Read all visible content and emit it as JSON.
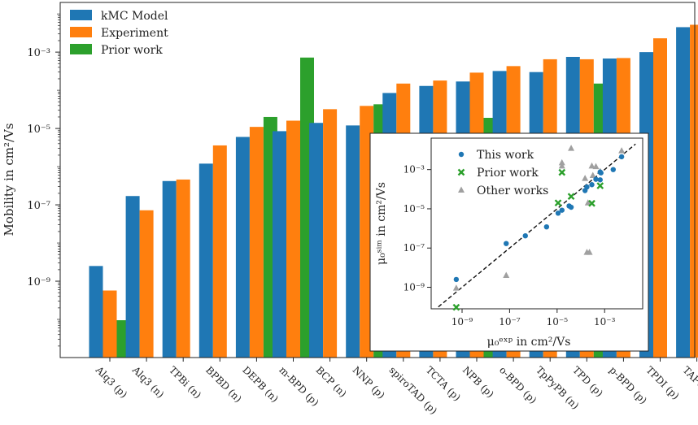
{
  "chart_data": {
    "type": "bar",
    "scale": "log",
    "ylabel": "Mobility in cm²/Vs",
    "xlabel": "",
    "ylim": [
      1e-11,
      0.02
    ],
    "y_tick_labels": [
      "10⁻³",
      "10⁻⁵",
      "10⁻⁷",
      "10⁻⁹"
    ],
    "y_tick_values": [
      0.001,
      1e-05,
      1e-07,
      1e-09
    ],
    "legend_position": "top-left",
    "colors": {
      "kmc": "#1f77b4",
      "exp": "#ff7f0e",
      "prior": "#2ca02c"
    },
    "categories": [
      "Alq3 (p)",
      "Alq3 (n)",
      "TPBi (n)",
      "BPBD (n)",
      "DEPB (n)",
      "m-BPD (p)",
      "BCP (n)",
      "NNP (p)",
      "spiroTAD (p)",
      "TCTA (p)",
      "NPB (p)",
      "o-BPD (p)",
      "TpPyPB (n)",
      "TPD (p)",
      "p-BPD (p)",
      "TPDI (p)",
      "TAPC (p)"
    ],
    "series": [
      {
        "name": "kMC Model",
        "color": "#1f77b4",
        "values": [
          2.5e-09,
          1.7e-07,
          4.2e-07,
          1.2e-06,
          6e-06,
          8.5e-06,
          1.4e-05,
          1.2e-05,
          8.5e-05,
          0.00013,
          0.00017,
          0.00032,
          0.0003,
          0.00075,
          0.00068,
          0.001,
          0.0045
        ]
      },
      {
        "name": "Experiment",
        "color": "#ff7f0e",
        "values": [
          5.7e-10,
          7.2e-08,
          4.6e-07,
          3.6e-06,
          1.1e-05,
          1.6e-05,
          3.2e-05,
          3.9e-05,
          0.00015,
          0.00018,
          0.00029,
          0.00043,
          0.00065,
          0.00065,
          0.0007,
          0.0023,
          0.0052
        ]
      },
      {
        "name": "Prior work",
        "color": "#2ca02c",
        "values": [
          9.5e-11,
          null,
          null,
          null,
          2e-05,
          0.00072,
          null,
          4.3e-05,
          null,
          null,
          1.9e-05,
          null,
          null,
          0.00015,
          null,
          null,
          null
        ]
      }
    ],
    "inset": {
      "type": "scatter",
      "xlabel": "μ₀ᵉˣᵖ in cm²/Vs",
      "ylabel": "μ₀ˢⁱᵐ in cm²/Vs",
      "xlim": [
        5e-11,
        0.04
      ],
      "ylim": [
        8e-11,
        0.04
      ],
      "x_tick_labels": [
        "10⁻⁹",
        "10⁻⁷",
        "10⁻⁵",
        "10⁻³"
      ],
      "x_tick_values": [
        1e-09,
        1e-07,
        1e-05,
        0.001
      ],
      "y_tick_labels": [
        "10⁻³",
        "10⁻⁵",
        "10⁻⁷",
        "10⁻⁹"
      ],
      "y_tick_values": [
        0.001,
        1e-05,
        1e-07,
        1e-09
      ],
      "legend": [
        "This work",
        "Prior work",
        "Other works"
      ],
      "legend_position": "top-left",
      "diagonal": "y = x (dashed)",
      "this_work": [
        [
          5.7e-10,
          2.5e-09
        ],
        [
          7.2e-08,
          1.7e-07
        ],
        [
          4.6e-07,
          4.2e-07
        ],
        [
          3.6e-06,
          1.2e-06
        ],
        [
          1.1e-05,
          6e-06
        ],
        [
          1.6e-05,
          8.5e-06
        ],
        [
          3.2e-05,
          1.4e-05
        ],
        [
          3.9e-05,
          1.2e-05
        ],
        [
          0.00015,
          8.5e-05
        ],
        [
          0.00018,
          0.00013
        ],
        [
          0.00029,
          0.00017
        ],
        [
          0.00043,
          0.00032
        ],
        [
          0.00065,
          0.0003
        ],
        [
          0.00065,
          0.00075
        ],
        [
          0.0007,
          0.00068
        ],
        [
          0.0023,
          0.001
        ],
        [
          0.0052,
          0.0045
        ]
      ],
      "prior_work": [
        [
          5.7e-10,
          9.5e-11
        ],
        [
          1.1e-05,
          2e-05
        ],
        [
          1.6e-05,
          0.00072
        ],
        [
          3.9e-05,
          4.3e-05
        ],
        [
          0.00029,
          1.9e-05
        ],
        [
          0.00065,
          0.00015
        ]
      ],
      "other_works": [
        [
          5.7e-10,
          9e-10
        ],
        [
          7.2e-08,
          4e-09
        ],
        [
          1.6e-05,
          0.0015
        ],
        [
          3.9e-05,
          0.012
        ],
        [
          0.00015,
          0.00035
        ],
        [
          0.00018,
          6e-08
        ],
        [
          0.00023,
          6e-08
        ],
        [
          0.00029,
          0.0015
        ],
        [
          0.00032,
          0.0005
        ],
        [
          0.00043,
          0.0014
        ],
        [
          0.00065,
          0.0008
        ],
        [
          0.0052,
          0.009
        ],
        [
          1.6e-05,
          0.0022
        ],
        [
          0.0002,
          2e-05
        ]
      ]
    }
  }
}
